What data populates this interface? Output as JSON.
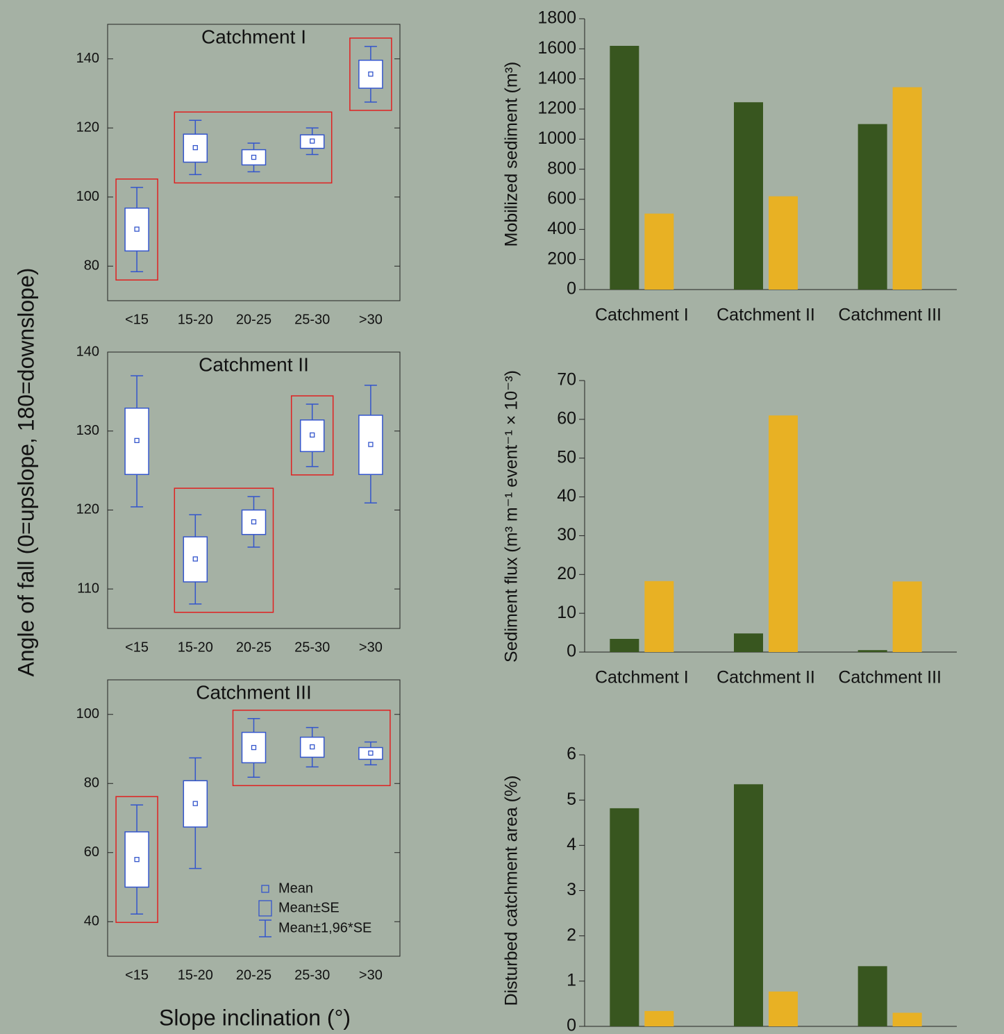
{
  "ylabel": "Angle of fall (0=upslope, 180=downslope)",
  "xlabel": "Slope inclination (°)",
  "chart_data": [
    {
      "type": "box",
      "title": "Catchment I",
      "categories": [
        "<15",
        "15-20",
        "20-25",
        "25-30",
        ">30"
      ],
      "mean": [
        90.7,
        114.3,
        111.5,
        116.2,
        135.6
      ],
      "box_low": [
        84.4,
        110.1,
        109.3,
        114.1,
        131.5
      ],
      "box_high": [
        96.8,
        118.2,
        113.7,
        118,
        139.6
      ],
      "whisker_low": [
        78.4,
        106.5,
        107.3,
        112.3,
        127.5
      ],
      "whisker_high": [
        102.8,
        122.2,
        115.6,
        120,
        143.6
      ],
      "groups": [
        [
          0
        ],
        [
          1,
          2,
          3
        ],
        [
          4
        ]
      ],
      "color": "#3355cc",
      "group_color": "#e02020",
      "ylim": [
        70,
        150
      ],
      "yticks": [
        80,
        100,
        120,
        140
      ]
    },
    {
      "type": "box",
      "title": "Catchment II",
      "categories": [
        "<15",
        "15-20",
        "20-25",
        "25-30",
        ">30"
      ],
      "mean": [
        128.8,
        113.8,
        118.5,
        129.5,
        128.3
      ],
      "box_low": [
        124.5,
        110.9,
        116.9,
        127.4,
        124.5
      ],
      "box_high": [
        132.9,
        116.6,
        120,
        131.4,
        132
      ],
      "whisker_low": [
        120.4,
        108.1,
        115.3,
        125.5,
        120.9
      ],
      "whisker_high": [
        137,
        119.4,
        121.7,
        133.4,
        135.8
      ],
      "groups": [
        [
          1,
          2
        ],
        [
          3
        ]
      ],
      "color": "#3355cc",
      "group_color": "#e02020",
      "ylim": [
        105,
        140
      ],
      "yticks": [
        110,
        120,
        130,
        140
      ]
    },
    {
      "type": "box",
      "title": "Catchment III",
      "categories": [
        "<15",
        "15-20",
        "20-25",
        "25-30",
        ">30"
      ],
      "mean": [
        58,
        74.2,
        90.4,
        90.6,
        88.8
      ],
      "box_low": [
        50,
        67.4,
        86,
        87.6,
        87
      ],
      "box_high": [
        66,
        80.8,
        94.8,
        93.4,
        90.4
      ],
      "whisker_low": [
        42.2,
        55.4,
        81.8,
        84.8,
        85.4
      ],
      "whisker_high": [
        73.8,
        87.4,
        98.8,
        96.2,
        92
      ],
      "groups": [
        [
          0
        ],
        [
          2,
          3,
          4
        ]
      ],
      "color": "#3355cc",
      "group_color": "#e02020",
      "legend": [
        "Mean",
        "Mean±SE",
        "Mean±1,96*SE"
      ],
      "ylim": [
        30,
        110
      ],
      "yticks": [
        40,
        60,
        80,
        100
      ]
    },
    {
      "type": "bar",
      "ylabel": "Mobilized sediment (m³)",
      "categories": [
        "Catchment I",
        "Catchment II",
        "Catchment III"
      ],
      "series": [
        {
          "color": "#38561f",
          "values": [
            1620,
            1245,
            1100
          ]
        },
        {
          "color": "#e8b124",
          "values": [
            505,
            620,
            1345
          ]
        }
      ],
      "ylim": [
        0,
        1800
      ],
      "yticks": [
        0,
        200,
        400,
        600,
        800,
        1000,
        1200,
        1400,
        1600,
        1800
      ]
    },
    {
      "type": "bar",
      "ylabel": "Sediment flux (m³ m⁻¹ event⁻¹ × 10⁻³)",
      "categories": [
        "Catchment I",
        "Catchment II",
        "Catchment III"
      ],
      "series": [
        {
          "color": "#38561f",
          "values": [
            3.4,
            4.8,
            0.5
          ]
        },
        {
          "color": "#e8b124",
          "values": [
            18.3,
            61,
            18.2
          ]
        }
      ],
      "ylim": [
        0,
        70
      ],
      "yticks": [
        0,
        10,
        20,
        30,
        40,
        50,
        60,
        70
      ]
    },
    {
      "type": "bar",
      "ylabel": "Disturbed catchment area (%)",
      "categories": [
        null,
        null,
        null
      ],
      "series": [
        {
          "color": "#38561f",
          "values": [
            4.82,
            5.35,
            1.33
          ]
        },
        {
          "color": "#e8b124",
          "values": [
            0.34,
            0.77,
            0.3
          ]
        }
      ],
      "ylim": [
        0,
        6
      ],
      "yticks": [
        0,
        1,
        2,
        3,
        4,
        5,
        6
      ]
    }
  ]
}
